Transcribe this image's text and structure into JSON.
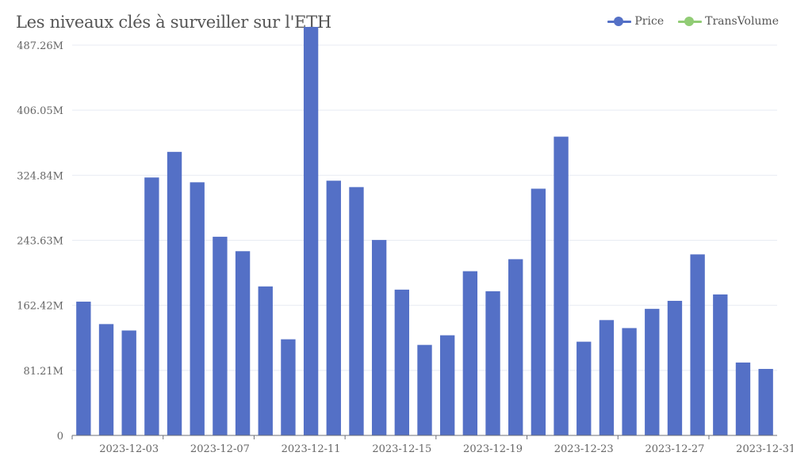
{
  "chart_data": {
    "type": "bar",
    "title": "Les niveaux clés à surveiller sur l'ETH",
    "legend": [
      {
        "name": "Price",
        "color": "#5470c6"
      },
      {
        "name": "TransVolume",
        "color": "#91cc75"
      }
    ],
    "legend_position": "top-right",
    "grid": true,
    "ylim": [
      0,
      487.26
    ],
    "y_ticks": [
      "0",
      "81.21M",
      "162.42M",
      "243.63M",
      "324.84M",
      "406.05M",
      "487.26M"
    ],
    "y_tick_values": [
      0,
      81.21,
      162.42,
      243.63,
      324.84,
      406.05,
      487.26
    ],
    "x_tick_labels": [
      "2023-12-03",
      "2023-12-07",
      "2023-12-11",
      "2023-12-15",
      "2023-12-19",
      "2023-12-23",
      "2023-12-27",
      "2023-12-31"
    ],
    "categories": [
      "2023-12-01",
      "2023-12-02",
      "2023-12-03",
      "2023-12-04",
      "2023-12-05",
      "2023-12-06",
      "2023-12-07",
      "2023-12-08",
      "2023-12-09",
      "2023-12-10",
      "2023-12-11",
      "2023-12-12",
      "2023-12-13",
      "2023-12-14",
      "2023-12-15",
      "2023-12-16",
      "2023-12-17",
      "2023-12-18",
      "2023-12-19",
      "2023-12-20",
      "2023-12-21",
      "2023-12-22",
      "2023-12-23",
      "2023-12-24",
      "2023-12-25",
      "2023-12-26",
      "2023-12-27",
      "2023-12-28",
      "2023-12-29",
      "2023-12-30",
      "2023-12-31"
    ],
    "series": [
      {
        "name": "Price",
        "color": "#5470c6",
        "values": [
          167,
          139,
          131,
          322,
          354,
          316,
          248,
          230,
          186,
          120,
          510,
          318,
          310,
          244,
          182,
          113,
          125,
          205,
          180,
          220,
          308,
          373,
          117,
          144,
          134,
          158,
          168,
          226,
          176,
          91,
          83
        ]
      }
    ]
  }
}
